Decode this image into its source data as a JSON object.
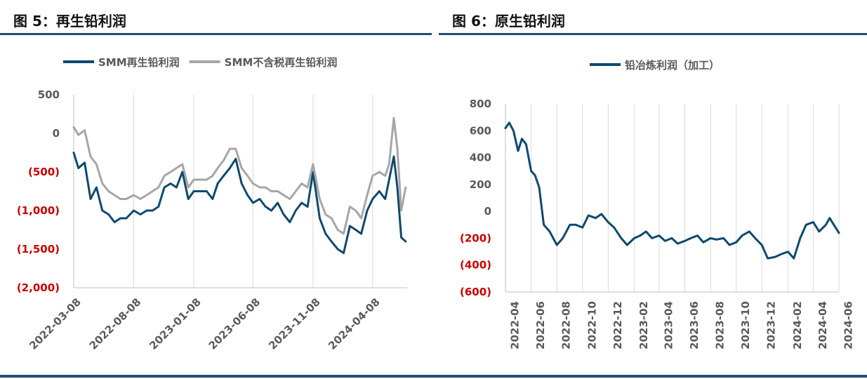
{
  "figures": {
    "left_title": "图 5：再生铅利润",
    "right_title": "图 6：原生铅利润"
  },
  "colors": {
    "navy": "#0d4a6e",
    "gray": "#a6a6a6",
    "negative": "#cc0000",
    "rule": "#1f4e79"
  },
  "chart_data": [
    {
      "type": "line",
      "title": "",
      "x_ticks": [
        "2022-03-08",
        "2022-08-08",
        "2023-01-08",
        "2023-06-08",
        "2023-11-08",
        "2024-04-08"
      ],
      "y_ticks": [
        500,
        0,
        -500,
        -1000,
        -1500,
        -2000
      ],
      "y_tick_labels": [
        "500",
        "0",
        "(500)",
        "(1,000)",
        "(1,500)",
        "(2,000)"
      ],
      "ylim": [
        -2000,
        500
      ],
      "xlim": [
        "2022-03-08",
        "2024-07-05"
      ],
      "grid": "vertical",
      "legend": "top",
      "series": [
        {
          "name": "SMM再生铅利润",
          "x": [
            "2022-03-08",
            "2022-03-20",
            "2022-04-05",
            "2022-04-20",
            "2022-05-05",
            "2022-05-20",
            "2022-06-05",
            "2022-06-20",
            "2022-07-05",
            "2022-07-20",
            "2022-08-08",
            "2022-08-25",
            "2022-09-10",
            "2022-09-25",
            "2022-10-10",
            "2022-10-25",
            "2022-11-10",
            "2022-11-25",
            "2022-12-10",
            "2022-12-25",
            "2023-01-08",
            "2023-01-25",
            "2023-02-10",
            "2023-02-25",
            "2023-03-10",
            "2023-03-25",
            "2023-04-10",
            "2023-04-25",
            "2023-05-10",
            "2023-05-25",
            "2023-06-08",
            "2023-06-25",
            "2023-07-10",
            "2023-07-25",
            "2023-08-10",
            "2023-08-25",
            "2023-09-10",
            "2023-09-25",
            "2023-10-10",
            "2023-10-25",
            "2023-11-08",
            "2023-11-25",
            "2023-12-10",
            "2023-12-25",
            "2024-01-10",
            "2024-01-25",
            "2024-02-10",
            "2024-02-25",
            "2024-03-10",
            "2024-03-25",
            "2024-04-08",
            "2024-04-25",
            "2024-05-10",
            "2024-05-20",
            "2024-06-01",
            "2024-06-10",
            "2024-06-20",
            "2024-07-01"
          ],
          "values": [
            -250,
            -450,
            -380,
            -850,
            -700,
            -1000,
            -1050,
            -1150,
            -1100,
            -1100,
            -1000,
            -1050,
            -1000,
            -1000,
            -950,
            -700,
            -650,
            -700,
            -500,
            -850,
            -750,
            -750,
            -750,
            -850,
            -650,
            -550,
            -450,
            -330,
            -650,
            -800,
            -900,
            -850,
            -950,
            -1000,
            -900,
            -1050,
            -1150,
            -1000,
            -900,
            -950,
            -500,
            -1100,
            -1300,
            -1400,
            -1500,
            -1550,
            -1200,
            -1250,
            -1300,
            -1000,
            -850,
            -750,
            -850,
            -600,
            -300,
            -700,
            -1350,
            -1400
          ]
        },
        {
          "name": "SMM不含税再生铅利润",
          "x": [
            "2022-03-08",
            "2022-03-20",
            "2022-04-05",
            "2022-04-20",
            "2022-05-05",
            "2022-05-20",
            "2022-06-05",
            "2022-06-20",
            "2022-07-05",
            "2022-07-20",
            "2022-08-08",
            "2022-08-25",
            "2022-09-10",
            "2022-09-25",
            "2022-10-10",
            "2022-10-25",
            "2022-11-10",
            "2022-11-25",
            "2022-12-10",
            "2022-12-25",
            "2023-01-08",
            "2023-01-25",
            "2023-02-10",
            "2023-02-25",
            "2023-03-10",
            "2023-03-25",
            "2023-04-10",
            "2023-04-25",
            "2023-05-10",
            "2023-05-25",
            "2023-06-08",
            "2023-06-25",
            "2023-07-10",
            "2023-07-25",
            "2023-08-10",
            "2023-08-25",
            "2023-09-10",
            "2023-09-25",
            "2023-10-10",
            "2023-10-25",
            "2023-11-08",
            "2023-11-25",
            "2023-12-10",
            "2023-12-25",
            "2024-01-10",
            "2024-01-25",
            "2024-02-10",
            "2024-02-25",
            "2024-03-10",
            "2024-03-25",
            "2024-04-08",
            "2024-04-25",
            "2024-05-10",
            "2024-05-20",
            "2024-06-01",
            "2024-06-10",
            "2024-06-20",
            "2024-07-01"
          ],
          "values": [
            80,
            -20,
            40,
            -300,
            -400,
            -650,
            -750,
            -800,
            -850,
            -850,
            -800,
            -850,
            -800,
            -750,
            -700,
            -550,
            -500,
            -450,
            -400,
            -700,
            -600,
            -600,
            -600,
            -550,
            -450,
            -350,
            -200,
            -200,
            -450,
            -550,
            -650,
            -700,
            -700,
            -750,
            -750,
            -800,
            -850,
            -750,
            -650,
            -700,
            -400,
            -850,
            -1050,
            -1100,
            -1250,
            -1300,
            -950,
            -1000,
            -1100,
            -800,
            -550,
            -500,
            -550,
            -400,
            200,
            -200,
            -1000,
            -700
          ]
        }
      ]
    },
    {
      "type": "line",
      "title": "",
      "x_ticks": [
        "2022-04",
        "2022-06",
        "2022-08",
        "2022-10",
        "2022-12",
        "2023-02",
        "2023-04",
        "2023-06",
        "2023-08",
        "2023-10",
        "2023-12",
        "2024-02",
        "2024-04",
        "2024-06"
      ],
      "y_ticks": [
        800,
        600,
        400,
        200,
        0,
        -200,
        -400,
        -600
      ],
      "y_tick_labels": [
        "800",
        "600",
        "400",
        "200",
        "0",
        "(200)",
        "(400)",
        "(600)"
      ],
      "ylim": [
        -600,
        800
      ],
      "xlim": [
        "2022-04-01",
        "2024-06-01"
      ],
      "grid": "vertical",
      "legend": "top",
      "series": [
        {
          "name": "铅冶炼利润（加工）",
          "x": [
            "2022-04-01",
            "2022-04-10",
            "2022-04-20",
            "2022-05-01",
            "2022-05-10",
            "2022-05-20",
            "2022-06-01",
            "2022-06-10",
            "2022-06-20",
            "2022-07-01",
            "2022-07-15",
            "2022-08-01",
            "2022-08-15",
            "2022-09-01",
            "2022-09-15",
            "2022-10-01",
            "2022-10-15",
            "2022-11-01",
            "2022-11-15",
            "2022-12-01",
            "2022-12-15",
            "2023-01-01",
            "2023-01-15",
            "2023-02-01",
            "2023-02-15",
            "2023-03-01",
            "2023-03-15",
            "2023-04-01",
            "2023-04-15",
            "2023-05-01",
            "2023-05-15",
            "2023-06-01",
            "2023-06-15",
            "2023-07-01",
            "2023-07-15",
            "2023-08-01",
            "2023-08-15",
            "2023-09-01",
            "2023-09-15",
            "2023-10-01",
            "2023-10-15",
            "2023-11-01",
            "2023-11-15",
            "2023-12-01",
            "2023-12-15",
            "2024-01-01",
            "2024-01-15",
            "2024-02-01",
            "2024-02-15",
            "2024-03-01",
            "2024-03-15",
            "2024-04-01",
            "2024-04-15",
            "2024-05-01",
            "2024-05-10",
            "2024-05-20",
            "2024-06-01"
          ],
          "values": [
            620,
            660,
            600,
            450,
            540,
            500,
            300,
            270,
            180,
            -100,
            -150,
            -250,
            -200,
            -100,
            -100,
            -120,
            -30,
            -50,
            -20,
            -80,
            -120,
            -200,
            -250,
            -200,
            -180,
            -150,
            -200,
            -180,
            -220,
            -200,
            -240,
            -220,
            -200,
            -180,
            -230,
            -200,
            -210,
            -200,
            -250,
            -230,
            -180,
            -150,
            -200,
            -250,
            -350,
            -340,
            -320,
            -300,
            -350,
            -200,
            -100,
            -80,
            -150,
            -100,
            -50,
            -100,
            -160
          ]
        }
      ]
    }
  ]
}
